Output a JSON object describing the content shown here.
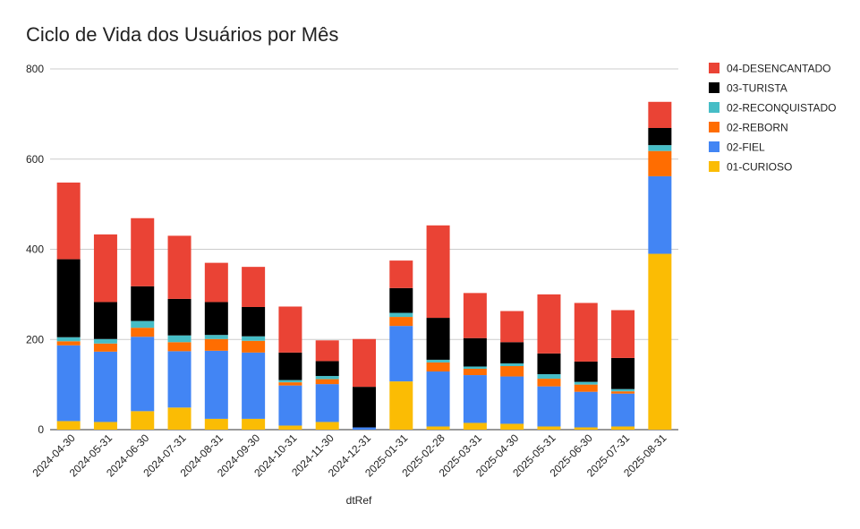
{
  "chart_data": {
    "type": "bar",
    "stacked": true,
    "title": "Ciclo de Vida dos Usuários por Mês",
    "xlabel": "dtRef",
    "ylabel": "",
    "ylim": [
      0,
      800
    ],
    "yticks": [
      0,
      200,
      400,
      600,
      800
    ],
    "grid": true,
    "legend_position": "right",
    "categories": [
      "2024-04-30",
      "2024-05-31",
      "2024-06-30",
      "2024-07-31",
      "2024-08-31",
      "2024-09-30",
      "2024-10-31",
      "2024-11-30",
      "2024-12-31",
      "2025-01-31",
      "2025-02-28",
      "2025-03-31",
      "2025-04-30",
      "2025-05-31",
      "2025-06-30",
      "2025-07-31",
      "2025-08-31"
    ],
    "series": [
      {
        "name": "01-CURIOSO",
        "color": "#FBBC04",
        "values": [
          19,
          17,
          41,
          49,
          24,
          24,
          9,
          17,
          0,
          107,
          7,
          15,
          13,
          7,
          5,
          7,
          390
        ]
      },
      {
        "name": "02-FIEL",
        "color": "#4285F4",
        "values": [
          168,
          156,
          165,
          125,
          151,
          147,
          89,
          84,
          5,
          123,
          122,
          106,
          105,
          89,
          79,
          73,
          172
        ]
      },
      {
        "name": "02-REBORN",
        "color": "#FF6D01",
        "values": [
          9,
          18,
          20,
          20,
          26,
          26,
          7,
          11,
          0,
          20,
          20,
          14,
          23,
          17,
          16,
          5,
          56
        ]
      },
      {
        "name": "02-RECONQUISTADO",
        "color": "#46BDC6",
        "values": [
          9,
          10,
          15,
          15,
          9,
          10,
          5,
          7,
          0,
          9,
          6,
          5,
          6,
          10,
          6,
          5,
          13
        ]
      },
      {
        "name": "03-TURISTA",
        "color": "#000000",
        "values": [
          173,
          82,
          77,
          81,
          73,
          65,
          61,
          33,
          90,
          55,
          93,
          63,
          47,
          46,
          45,
          69,
          38
        ]
      },
      {
        "name": "04-DESENCANTADO",
        "color": "#EA4335",
        "values": [
          170,
          150,
          151,
          140,
          87,
          89,
          102,
          46,
          106,
          61,
          205,
          100,
          69,
          131,
          130,
          106,
          58
        ]
      }
    ]
  }
}
